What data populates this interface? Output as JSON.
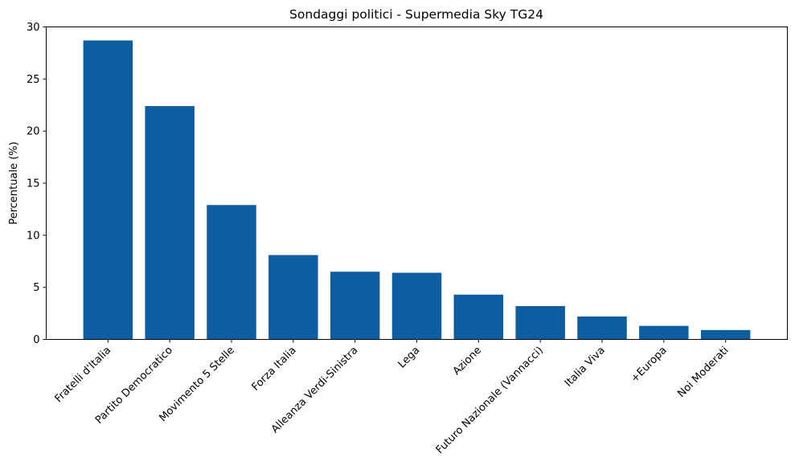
{
  "chart_data": {
    "type": "bar",
    "title": "Sondaggi politici - Supermedia Sky TG24",
    "xlabel": "",
    "ylabel": "Percentuale (%)",
    "ylim": [
      0,
      30
    ],
    "yticks": [
      0,
      5,
      10,
      15,
      20,
      25,
      30
    ],
    "grid": false,
    "legend": "none",
    "bar_color": "#0e5da0",
    "categories": [
      "Fratelli d'Italia",
      "Partito Democratico",
      "Movimento 5 Stelle",
      "Forza Italia",
      "Alleanza Verdi-Sinistra",
      "Lega",
      "Azione",
      "Futuro Nazionale (Vannacci)",
      "Italia Viva",
      "+Europa",
      "Noi Moderati"
    ],
    "values": [
      28.7,
      22.4,
      12.9,
      8.1,
      6.5,
      6.4,
      4.3,
      3.2,
      2.2,
      1.3,
      0.9
    ]
  }
}
